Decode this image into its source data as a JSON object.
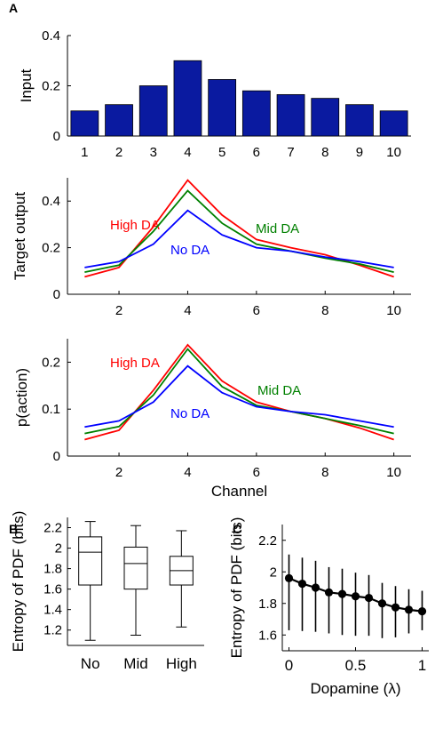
{
  "chart_data": [
    {
      "panel": "A",
      "type": "bar",
      "ylabel": "Input",
      "xlabel": "",
      "categories": [
        "1",
        "2",
        "3",
        "4",
        "5",
        "6",
        "7",
        "8",
        "9",
        "10"
      ],
      "values": [
        0.1,
        0.125,
        0.2,
        0.3,
        0.225,
        0.18,
        0.165,
        0.15,
        0.125,
        0.1
      ],
      "ylim": [
        0,
        0.4
      ],
      "yticks": [
        "0",
        "0.2",
        "0.4"
      ],
      "color": "#0a1aa0"
    },
    {
      "panel": "",
      "type": "line",
      "ylabel": "Target output",
      "xlabel": "",
      "x": [
        1,
        2,
        3,
        4,
        5,
        6,
        7,
        8,
        9,
        10
      ],
      "xticks": [
        "2",
        "4",
        "6",
        "8",
        "10"
      ],
      "yticks": [
        "0",
        "0.2",
        "0.4"
      ],
      "ylim": [
        0,
        0.5
      ],
      "series": [
        {
          "name": "High DA",
          "color": "#ff0000",
          "values": [
            0.075,
            0.115,
            0.29,
            0.49,
            0.34,
            0.235,
            0.2,
            0.17,
            0.125,
            0.075
          ]
        },
        {
          "name": "Mid DA",
          "color": "#008000",
          "values": [
            0.095,
            0.125,
            0.27,
            0.445,
            0.305,
            0.215,
            0.185,
            0.155,
            0.13,
            0.095
          ]
        },
        {
          "name": "No DA",
          "color": "#0000ff",
          "values": [
            0.115,
            0.14,
            0.215,
            0.36,
            0.255,
            0.2,
            0.185,
            0.16,
            0.14,
            0.115
          ]
        }
      ]
    },
    {
      "panel": "",
      "type": "line",
      "ylabel": "p(action)",
      "xlabel": "Channel",
      "x": [
        1,
        2,
        3,
        4,
        5,
        6,
        7,
        8,
        9,
        10
      ],
      "xticks": [
        "2",
        "4",
        "6",
        "8",
        "10"
      ],
      "yticks": [
        "0",
        "0.1",
        "0.2"
      ],
      "ylim": [
        0,
        0.25
      ],
      "series": [
        {
          "name": "High DA",
          "color": "#ff0000",
          "values": [
            0.035,
            0.055,
            0.14,
            0.237,
            0.16,
            0.115,
            0.095,
            0.08,
            0.06,
            0.035
          ]
        },
        {
          "name": "Mid DA",
          "color": "#008000",
          "values": [
            0.048,
            0.063,
            0.13,
            0.228,
            0.148,
            0.108,
            0.095,
            0.08,
            0.065,
            0.048
          ]
        },
        {
          "name": "No DA",
          "color": "#0000ff",
          "values": [
            0.062,
            0.075,
            0.115,
            0.192,
            0.135,
            0.105,
            0.095,
            0.088,
            0.075,
            0.062
          ]
        }
      ]
    },
    {
      "panel": "B",
      "type": "box",
      "ylabel": "Entropy of PDF (bits)",
      "xlabel": "",
      "categories": [
        "No",
        "Mid",
        "High"
      ],
      "ylim": [
        1.05,
        2.3
      ],
      "yticks": [
        "1.2",
        "1.4",
        "1.6",
        "1.8",
        "2",
        "2.2"
      ],
      "boxes": [
        {
          "min": 1.1,
          "q1": 1.64,
          "median": 1.96,
          "q3": 2.11,
          "max": 2.26
        },
        {
          "min": 1.15,
          "q1": 1.6,
          "median": 1.85,
          "q3": 2.01,
          "max": 2.22
        },
        {
          "min": 1.23,
          "q1": 1.64,
          "median": 1.78,
          "q3": 1.92,
          "max": 2.17
        }
      ]
    },
    {
      "panel": "C",
      "type": "errorbar",
      "ylabel": "Entropy of PDF (bits)",
      "xlabel": "Dopamine (λ)",
      "xticks": [
        "0",
        "0.5",
        "1"
      ],
      "yticks": [
        "1.6",
        "1.8",
        "2",
        "2.2"
      ],
      "xlim": [
        -0.05,
        1.05
      ],
      "ylim": [
        1.5,
        2.3
      ],
      "x": [
        0,
        0.1,
        0.2,
        0.3,
        0.4,
        0.5,
        0.6,
        0.7,
        0.8,
        0.9,
        1.0
      ],
      "y": [
        1.96,
        1.925,
        1.9,
        1.87,
        1.86,
        1.845,
        1.835,
        1.8,
        1.775,
        1.76,
        1.75
      ],
      "err_low": [
        0.33,
        0.3,
        0.28,
        0.26,
        0.26,
        0.25,
        0.24,
        0.22,
        0.19,
        0.15,
        0.12
      ],
      "err_high": [
        0.15,
        0.165,
        0.17,
        0.16,
        0.16,
        0.15,
        0.145,
        0.13,
        0.135,
        0.13,
        0.13
      ]
    }
  ]
}
